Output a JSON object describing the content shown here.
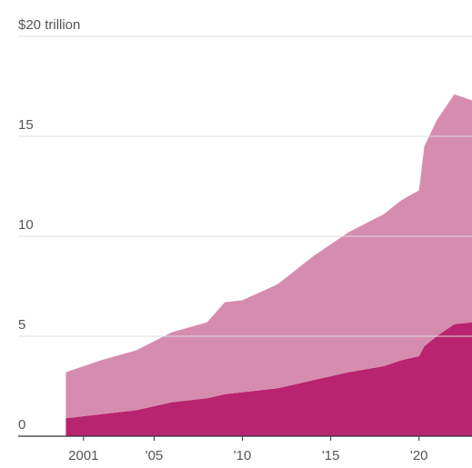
{
  "chart_data": {
    "type": "stacked_area",
    "x": [
      2000,
      2002,
      2004,
      2006,
      2008,
      2009,
      2010,
      2012,
      2014,
      2016,
      2018,
      2019,
      2020,
      2020.3,
      2021,
      2022,
      2023
    ],
    "series": [
      {
        "color": "#b8246f",
        "values": [
          0.9,
          1.1,
          1.3,
          1.7,
          1.9,
          2.1,
          2.2,
          2.4,
          2.8,
          3.2,
          3.5,
          3.8,
          4.0,
          4.5,
          5.0,
          5.6,
          5.7
        ]
      },
      {
        "color": "#d68cae",
        "values": [
          2.3,
          2.7,
          3.0,
          3.5,
          3.8,
          4.6,
          4.6,
          5.2,
          6.2,
          7.0,
          7.6,
          8.0,
          8.3,
          10.0,
          10.8,
          11.5,
          11.1
        ]
      }
    ],
    "xlim": [
      1997.3,
      2023
    ],
    "xticks": [
      2001,
      {
        "value": 2005,
        "label": "'05"
      },
      {
        "value": 2010,
        "label": "'10"
      },
      {
        "value": 2015,
        "label": "'15"
      },
      {
        "value": 2020,
        "label": "'20"
      }
    ],
    "ylim": [
      0,
      20
    ],
    "yticks": [
      0,
      5,
      10,
      15,
      {
        "value": 20,
        "label": "$20 trillion"
      }
    ],
    "grid": true
  }
}
